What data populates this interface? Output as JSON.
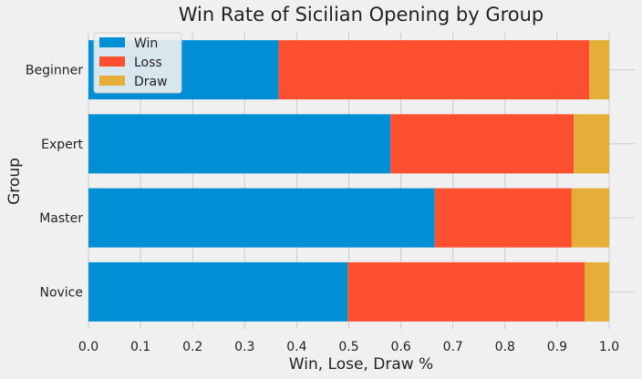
{
  "chart_data": {
    "type": "bar",
    "orientation": "horizontal",
    "stacked": true,
    "title": "Win Rate of Sicilian Opening by Group",
    "xlabel": "Win, Lose, Draw %",
    "ylabel": "Group",
    "categories": [
      "Beginner",
      "Expert",
      "Master",
      "Novice"
    ],
    "series": [
      {
        "name": "Win",
        "color": "#008fd5",
        "values": [
          0.365,
          0.58,
          0.665,
          0.498
        ]
      },
      {
        "name": "Loss",
        "color": "#fc4f30",
        "values": [
          0.597,
          0.352,
          0.263,
          0.455
        ]
      },
      {
        "name": "Draw",
        "color": "#e5ae38",
        "values": [
          0.038,
          0.068,
          0.072,
          0.047
        ]
      }
    ],
    "xlim": [
      0.0,
      1.0
    ],
    "xticks": [
      "0.0",
      "0.1",
      "0.2",
      "0.3",
      "0.4",
      "0.5",
      "0.6",
      "0.7",
      "0.8",
      "0.9",
      "1.0"
    ],
    "grid": true,
    "legend_position": "top-left"
  }
}
